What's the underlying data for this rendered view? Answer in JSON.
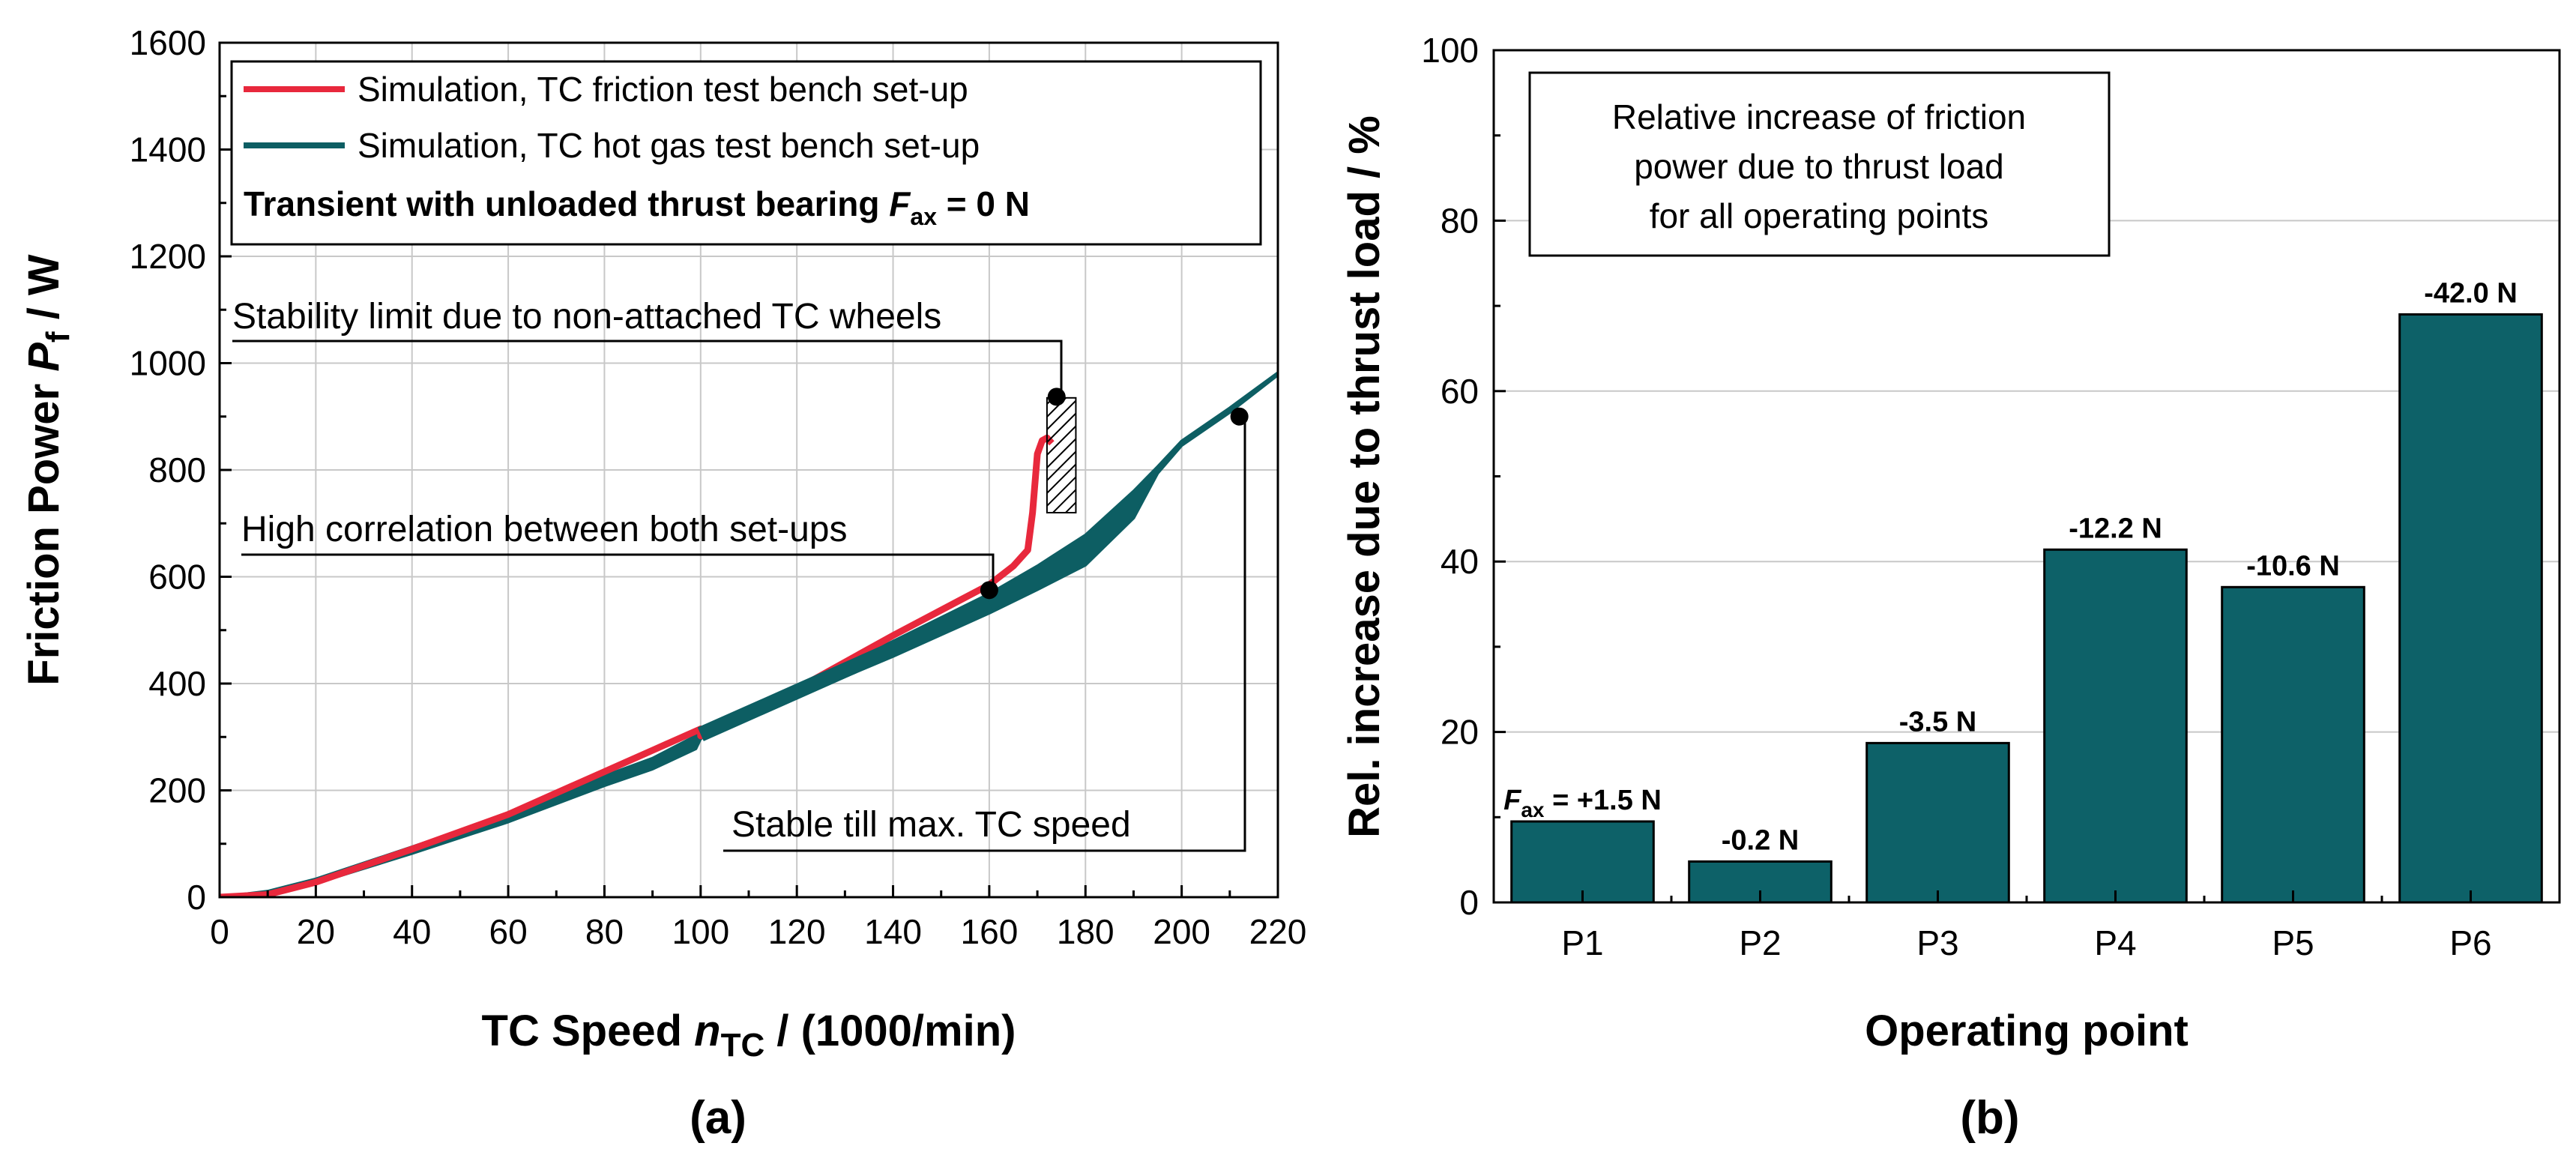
{
  "chart_data": [
    {
      "panel": "(a)",
      "type": "line",
      "title": "",
      "xlabel_main": "TC Speed ",
      "xlabel_symbol": "n",
      "xlabel_sub": "TC",
      "xlabel_tail": " / (1000/min)",
      "ylabel_main": "Friction Power ",
      "ylabel_symbol": "P",
      "ylabel_sub": "f",
      "ylabel_tail": " / W",
      "xlim": [
        0,
        220
      ],
      "ylim": [
        0,
        1600
      ],
      "xticks": [
        0,
        20,
        40,
        60,
        80,
        100,
        120,
        140,
        160,
        180,
        200,
        220
      ],
      "yticks": [
        0,
        200,
        400,
        600,
        800,
        1000,
        1200,
        1400,
        1600
      ],
      "grid": true,
      "legend": {
        "position": "top-left",
        "entries": [
          "Simulation, TC friction test bench set-up",
          "Simulation, TC hot gas test bench set-up"
        ],
        "note_main": "Transient with unloaded thrust bearing ",
        "note_symbol": "F",
        "note_sub": "ax",
        "note_tail": " = 0 N"
      },
      "series": [
        {
          "name": "Simulation, TC friction test bench set-up",
          "color": "#e8283c",
          "x": [
            0,
            10,
            20,
            40,
            60,
            80,
            90,
            100,
            100,
            120,
            140,
            160,
            165,
            168,
            169,
            170,
            171,
            172,
            173
          ],
          "y": [
            0,
            5,
            28,
            90,
            155,
            235,
            275,
            315,
            302,
            390,
            490,
            585,
            620,
            650,
            720,
            830,
            855,
            860,
            850
          ]
        },
        {
          "name": "Simulation, TC hot gas test bench set-up",
          "color": "#0d5e63",
          "x": [
            0,
            10,
            20,
            40,
            60,
            80,
            90,
            99,
            100,
            120,
            140,
            160,
            170,
            180,
            190,
            195,
            200,
            210,
            220
          ],
          "y": [
            0,
            8,
            30,
            88,
            148,
            218,
            250,
            290,
            305,
            385,
            465,
            550,
            598,
            650,
            735,
            800,
            850,
            912,
            980
          ],
          "band_half_width": [
            0,
            3,
            4,
            6,
            7,
            9,
            10,
            12,
            8,
            10,
            14,
            18,
            22,
            28,
            25,
            6,
            4,
            4,
            2
          ]
        }
      ],
      "annotations": [
        {
          "text": "Stability limit due to non-attached TC wheels",
          "x": 174,
          "y": 937
        },
        {
          "text": "High correlation between both set-ups",
          "x": 160,
          "y": 575
        },
        {
          "text": "Stable till max. TC speed",
          "x": 212,
          "y": 900
        }
      ],
      "hatched_region": {
        "x": [
          172,
          178
        ],
        "y": [
          720,
          935
        ]
      }
    },
    {
      "panel": "(b)",
      "type": "bar",
      "title": "",
      "xlabel": "Operating point",
      "ylabel": "Rel. increase due to thrust load / %",
      "ylim": [
        0,
        100
      ],
      "yticks": [
        0,
        20,
        40,
        60,
        80,
        100
      ],
      "grid": true,
      "bar_color": "#0d6168",
      "categories": [
        "P1",
        "P2",
        "P3",
        "P4",
        "P5",
        "P6"
      ],
      "values": [
        9.5,
        4.8,
        18.7,
        41.4,
        37.0,
        69.0
      ],
      "data_labels": [
        "= +1.5 N",
        "-0.2 N",
        "-3.5 N",
        "-12.2 N",
        "-10.6 N",
        "-42.0 N"
      ],
      "first_label_symbol": "F",
      "first_label_sub": "ax",
      "info_box": [
        "Relative increase of friction",
        "power due to thrust load",
        "for all operating points"
      ]
    }
  ]
}
